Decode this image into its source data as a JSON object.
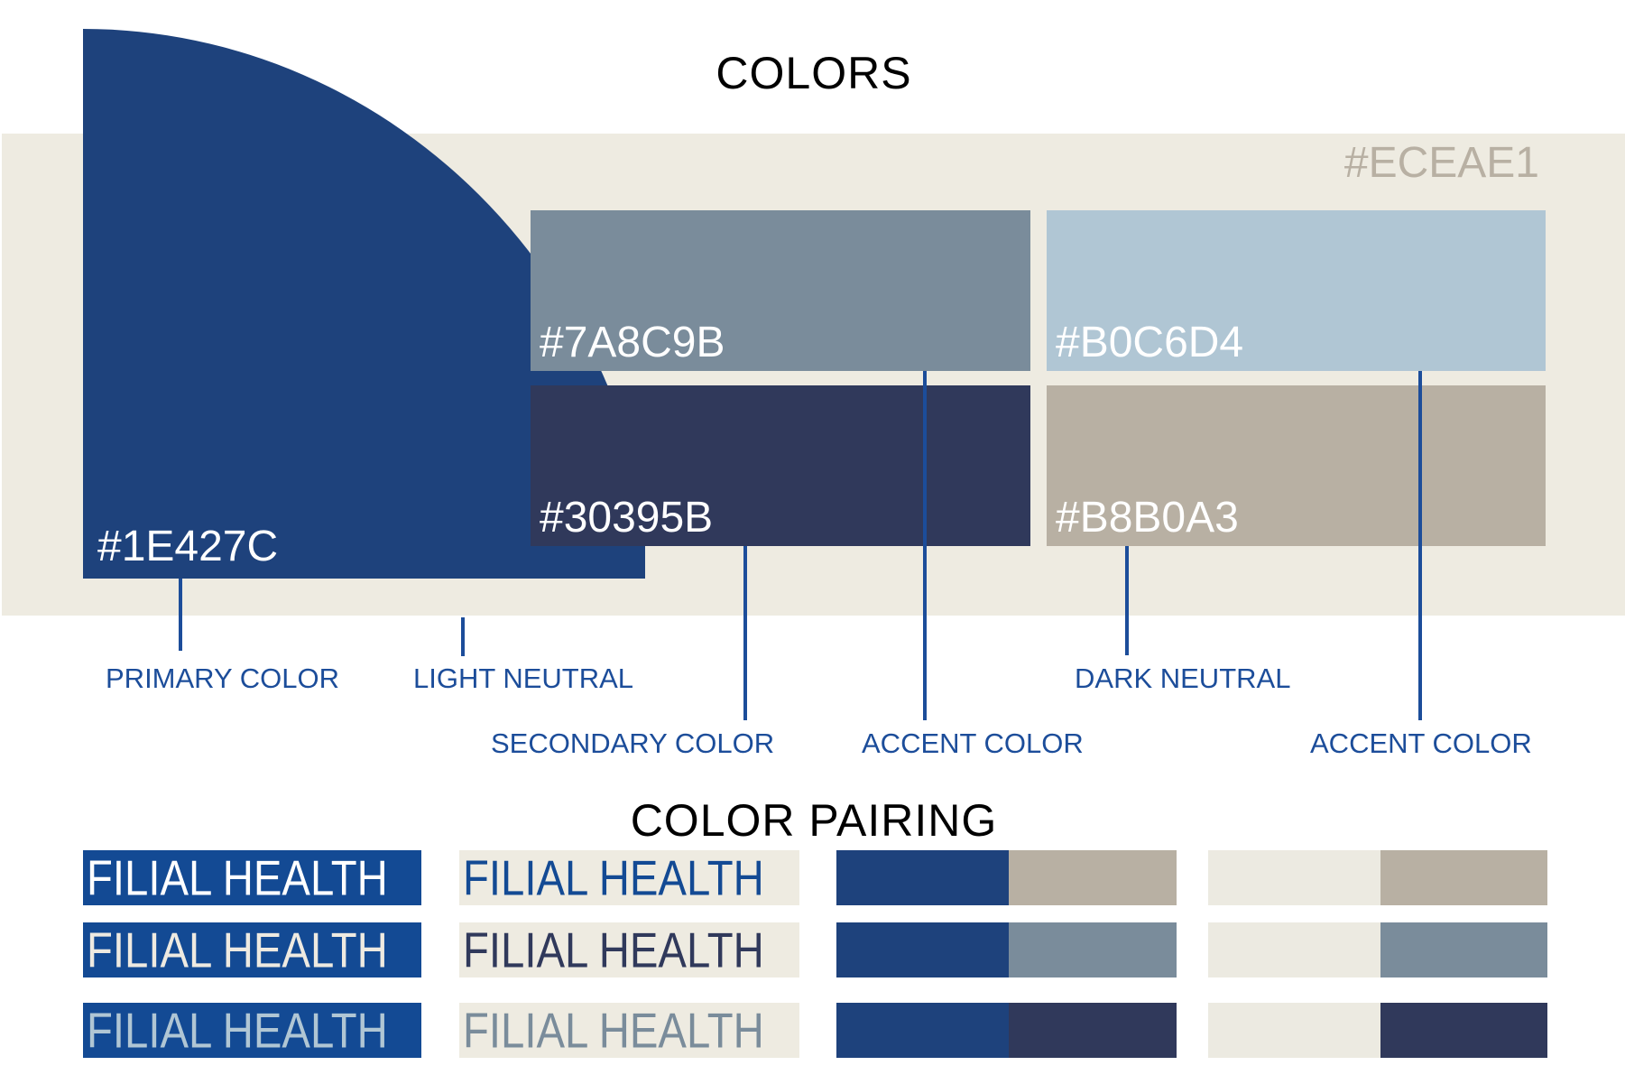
{
  "header": {
    "title": "COLORS"
  },
  "background_color": {
    "hex": "#ECEAE1",
    "label": "#ECEAE1"
  },
  "swatches": [
    {
      "hex": "#1E427C",
      "label": "#1E427C",
      "role": "PRIMARY COLOR"
    },
    {
      "hex": "#7A8C9B",
      "label": "#7A8C9B",
      "role": "ACCENT COLOR"
    },
    {
      "hex": "#B0C6D4",
      "label": "#B0C6D4",
      "role": "ACCENT COLOR"
    },
    {
      "hex": "#30395B",
      "label": "#30395B",
      "role": "SECONDARY COLOR"
    },
    {
      "hex": "#B8B0A3",
      "label": "#B8B0A3",
      "role": "DARK NEUTRAL"
    }
  ],
  "labels": {
    "primary": "PRIMARY COLOR",
    "light_neutral": "LIGHT NEUTRAL",
    "secondary": "SECONDARY COLOR",
    "accent1": "ACCENT COLOR",
    "dark_neutral": "DARK NEUTRAL",
    "accent2": "ACCENT COLOR"
  },
  "pairing": {
    "title": "COLOR PAIRING",
    "brand_text": "FILIAL HEALTH",
    "rows": [
      {
        "text_on_blue": "#FFFFFF",
        "text_on_light": "#134A94",
        "blue_pair": [
          "#1E427C",
          "#B8B0A3"
        ],
        "light_pair": [
          "#ECEAE1",
          "#B8B0A3"
        ]
      },
      {
        "text_on_blue": "#EEEAE1",
        "text_on_light": "#30395B",
        "blue_pair": [
          "#1E427C",
          "#7A8C9B"
        ],
        "light_pair": [
          "#ECEAE1",
          "#7A8C9B"
        ]
      },
      {
        "text_on_blue": "#B0C6D4",
        "text_on_light": "#7A8C9B",
        "blue_pair": [
          "#1E427C",
          "#30395B"
        ],
        "light_pair": [
          "#ECEAE1",
          "#30395B"
        ]
      }
    ]
  }
}
